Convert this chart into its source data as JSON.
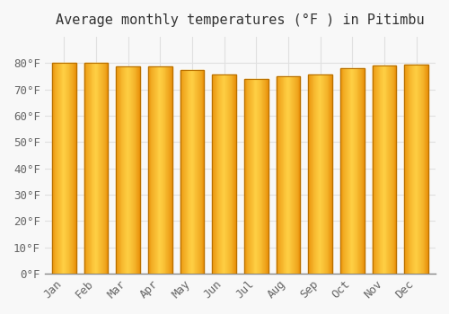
{
  "title": "Average monthly temperatures (°F ) in Pitimbu",
  "months": [
    "Jan",
    "Feb",
    "Mar",
    "Apr",
    "May",
    "Jun",
    "Jul",
    "Aug",
    "Sep",
    "Oct",
    "Nov",
    "Dec"
  ],
  "values": [
    80.0,
    80.0,
    78.8,
    78.8,
    77.2,
    75.6,
    74.0,
    75.0,
    75.5,
    78.0,
    79.0,
    79.5
  ],
  "bar_color_dark": "#E8900A",
  "bar_color_light": "#FFD044",
  "bar_edge_color": "#B87000",
  "background_color": "#F8F8F8",
  "grid_color": "#E0E0E0",
  "ylim": [
    0,
    90
  ],
  "yticks": [
    0,
    10,
    20,
    30,
    40,
    50,
    60,
    70,
    80
  ],
  "ytick_labels": [
    "0°F",
    "10°F",
    "20°F",
    "30°F",
    "40°F",
    "50°F",
    "60°F",
    "70°F",
    "80°F"
  ],
  "title_fontsize": 11,
  "tick_fontsize": 9,
  "figsize": [
    5.0,
    3.5
  ],
  "dpi": 100,
  "bar_width": 0.75
}
